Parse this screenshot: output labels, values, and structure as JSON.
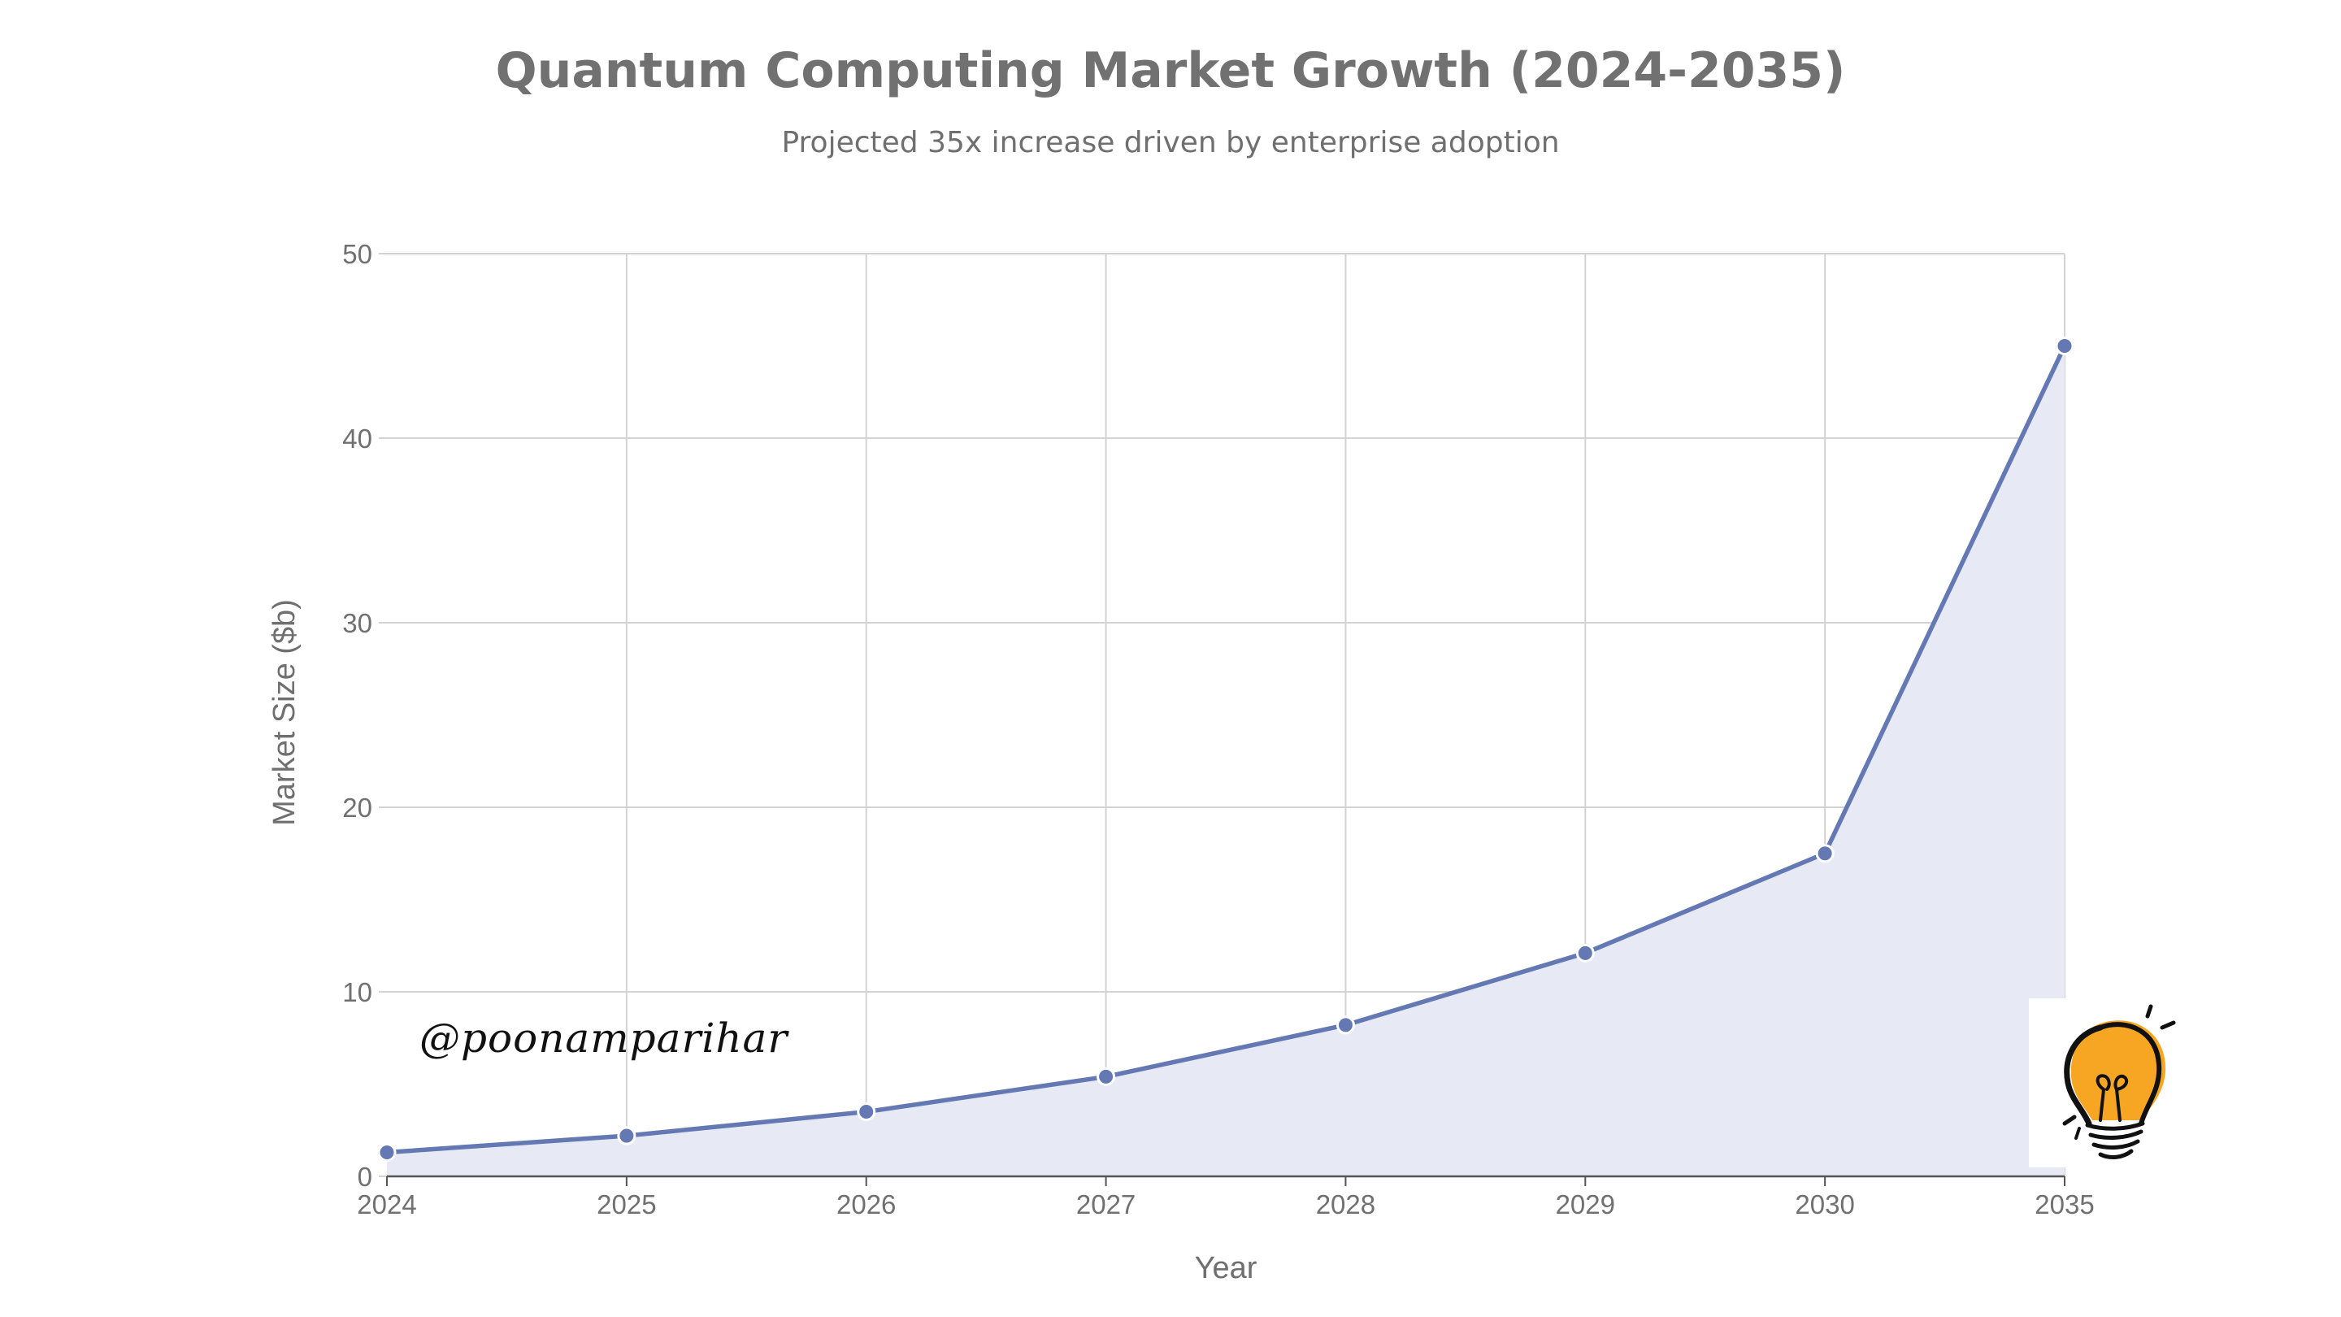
{
  "chart_data": {
    "type": "area",
    "title": "Quantum Computing Market Growth (2024-2035)",
    "subtitle": "Projected 35x increase driven by enterprise adoption",
    "xlabel": "Year",
    "ylabel": "Market Size ($b)",
    "categories": [
      "2024",
      "2025",
      "2026",
      "2027",
      "2028",
      "2029",
      "2030",
      "2035"
    ],
    "series": [
      {
        "values": [
          1.3,
          2.2,
          3.5,
          5.4,
          8.2,
          12.1,
          17.5,
          45.0
        ]
      }
    ],
    "ylim": [
      0,
      50
    ],
    "yticks": [
      0,
      10,
      20,
      30,
      40,
      50
    ],
    "grid": true,
    "line_color": "#6479b3",
    "fill_color": "#e7e9f5"
  },
  "watermark": {
    "text": "@poonamparihar"
  },
  "logo": {
    "icon": "lightbulb-icon",
    "bulb_color": "#f6a623"
  }
}
